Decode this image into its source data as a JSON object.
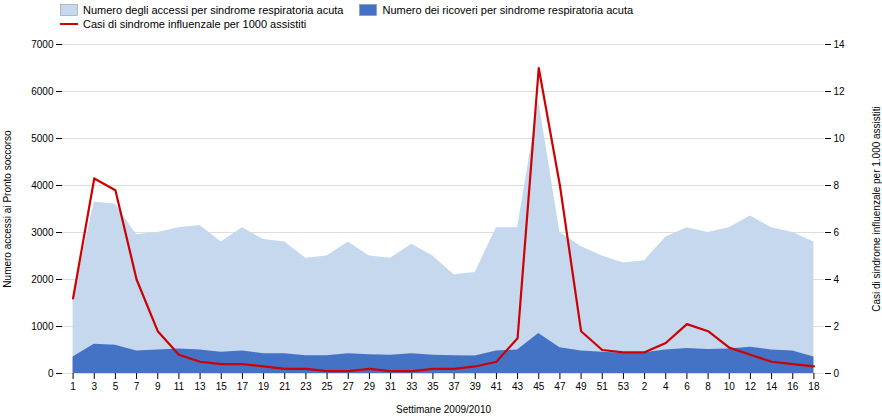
{
  "chart_data": {
    "type": "area",
    "xlabel": "Settimane 2009/2010",
    "ylabel": "Numero accessi ai Pronto soccorso",
    "y2label": "Casi di sindrome influenzale per 1.000 assistiti",
    "categories": [
      "1",
      "3",
      "5",
      "7",
      "9",
      "11",
      "13",
      "15",
      "17",
      "19",
      "21",
      "23",
      "25",
      "27",
      "29",
      "31",
      "33",
      "35",
      "37",
      "39",
      "41",
      "43",
      "45",
      "47",
      "49",
      "51",
      "53",
      "2",
      "4",
      "6",
      "8",
      "10",
      "12",
      "14",
      "16",
      "18"
    ],
    "series": [
      {
        "name": "Numero degli accessi per sindrome respiratoria acuta",
        "type": "area",
        "color": "#c5d8ee",
        "values": [
          1600,
          3650,
          3600,
          2950,
          3000,
          3100,
          3150,
          2800,
          3100,
          2850,
          2800,
          2450,
          2500,
          2800,
          2500,
          2450,
          2750,
          2500,
          2100,
          2150,
          3100,
          3100,
          5800,
          3000,
          2700,
          2500,
          2350,
          2400,
          2900,
          3100,
          3000,
          3100,
          3350,
          3100,
          3000,
          2800
        ]
      },
      {
        "name": "Numero dei ricoveri per sindrome respiratoria acuta",
        "type": "area",
        "color": "#4472c4",
        "values": [
          350,
          620,
          600,
          480,
          500,
          520,
          500,
          450,
          480,
          420,
          420,
          380,
          380,
          420,
          400,
          390,
          420,
          390,
          380,
          370,
          480,
          500,
          850,
          550,
          480,
          450,
          430,
          440,
          500,
          530,
          510,
          520,
          560,
          500,
          480,
          350
        ]
      },
      {
        "name": "Casi di sindrome influenzale per 1000 assistiti",
        "type": "line",
        "axis": "y2",
        "color": "#cc0000",
        "values": [
          3.2,
          8.3,
          7.8,
          4.0,
          1.8,
          0.8,
          0.5,
          0.4,
          0.4,
          0.3,
          0.2,
          0.2,
          0.1,
          0.1,
          0.2,
          0.1,
          0.1,
          0.2,
          0.2,
          0.3,
          0.5,
          1.5,
          13.0,
          8.0,
          1.8,
          1.0,
          0.9,
          0.9,
          1.3,
          2.1,
          1.8,
          1.1,
          0.8,
          0.5,
          0.4,
          0.3
        ]
      }
    ],
    "ylim": [
      0,
      7000
    ],
    "yticks": [
      0,
      1000,
      2000,
      3000,
      4000,
      5000,
      6000,
      7000
    ],
    "y2lim": [
      0,
      14
    ],
    "y2ticks": [
      0,
      2,
      4,
      6,
      8,
      10,
      12,
      14
    ],
    "grid": true
  }
}
